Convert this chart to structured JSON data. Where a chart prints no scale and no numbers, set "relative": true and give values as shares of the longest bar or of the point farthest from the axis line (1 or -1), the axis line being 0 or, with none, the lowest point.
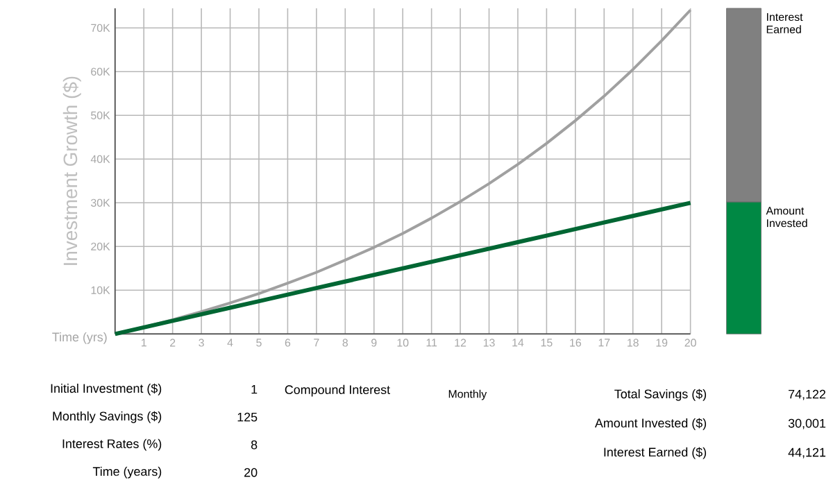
{
  "chart_data": [
    {
      "type": "line",
      "xlabel": "Time (yrs)",
      "ylabel": "Investment Growth ($)",
      "x": [
        0,
        1,
        2,
        3,
        4,
        5,
        6,
        7,
        8,
        9,
        10,
        11,
        12,
        13,
        14,
        15,
        16,
        17,
        18,
        19,
        20
      ],
      "series": [
        {
          "color": "#a0a0a0",
          "values": [
            0,
            1560,
            3250,
            5090,
            7090,
            9250,
            11600,
            14100,
            16900,
            19800,
            23000,
            26500,
            30300,
            34400,
            38800,
            43600,
            48800,
            54400,
            60500,
            67100,
            74100
          ]
        },
        {
          "color": "#006633",
          "values": [
            0,
            1500,
            3000,
            4500,
            6000,
            7500,
            9000,
            10500,
            12000,
            13500,
            15000,
            16500,
            18000,
            19500,
            21000,
            22500,
            24000,
            25500,
            27000,
            28500,
            30000
          ]
        }
      ],
      "xlim": [
        0,
        20
      ],
      "ylim": [
        0,
        74500
      ],
      "xticks": [
        1,
        2,
        3,
        4,
        5,
        6,
        7,
        8,
        9,
        10,
        11,
        12,
        13,
        14,
        15,
        16,
        17,
        18,
        19,
        20
      ],
      "yticks": [
        {
          "value": 10000,
          "label": "10K"
        },
        {
          "value": 20000,
          "label": "20K"
        },
        {
          "value": 30000,
          "label": "30K"
        },
        {
          "value": 40000,
          "label": "40K"
        },
        {
          "value": 50000,
          "label": "50K"
        },
        {
          "value": 60000,
          "label": "60K"
        },
        {
          "value": 70000,
          "label": "70K"
        }
      ],
      "grid": true,
      "annotations": [
        "Initial Investment ($)",
        "1",
        "Monthly Savings ($)",
        "125",
        "Interest Rates (%)",
        "8",
        "Time (years)",
        "20",
        "Compound Interest",
        "Monthly",
        "Total Savings ($)",
        "74,122",
        "Amount Invested ($)",
        "30,001",
        "Interest Earned ($)",
        "44,121"
      ]
    },
    {
      "type": "bar",
      "stacked": true,
      "relative": true,
      "categories": [
        null
      ],
      "series": [
        {
          "name": "Amount Invested",
          "color": "#008844",
          "values": [
            0.405
          ]
        },
        {
          "name": "Interest Earned",
          "color": "#808080",
          "values": [
            0.595
          ]
        }
      ]
    }
  ]
}
